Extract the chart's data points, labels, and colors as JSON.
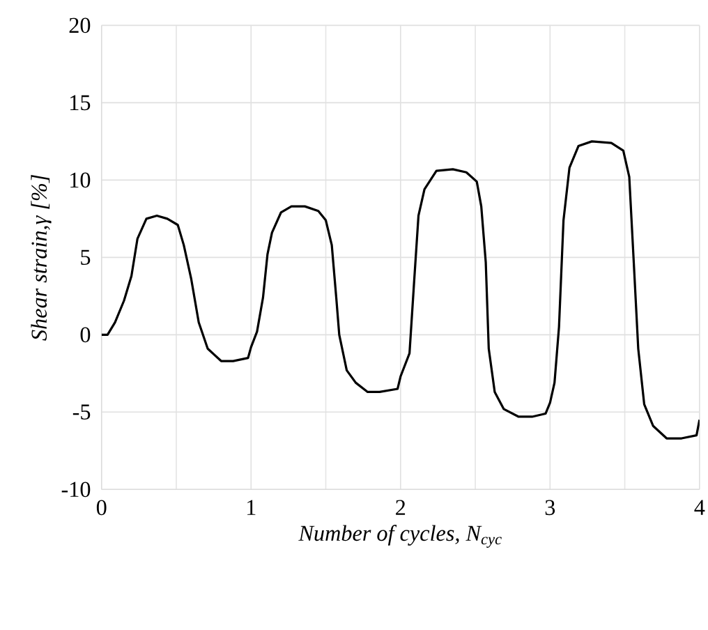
{
  "chart_data": {
    "type": "line",
    "xlabel": "*Number of cycles, N$_{cyc}$*",
    "ylabel": "*Shear strain,γ [%]*",
    "xlim": [
      0,
      4
    ],
    "ylim": [
      -10,
      20
    ],
    "xticks": [
      0,
      1,
      2,
      3,
      4
    ],
    "yticks": [
      -10,
      -5,
      0,
      5,
      10,
      15,
      20
    ],
    "grid": true,
    "marker": "none",
    "line_style": "solid",
    "series": [
      {
        "color": "#000000",
        "x": [
          0,
          0.04,
          0.09,
          0.15,
          0.2,
          0.24,
          0.3,
          0.37,
          0.44,
          0.51,
          0.55,
          0.6,
          0.65,
          0.71,
          0.8,
          0.88,
          0.98,
          1.0,
          1.04,
          1.08,
          1.11,
          1.14,
          1.2,
          1.27,
          1.36,
          1.45,
          1.5,
          1.54,
          1.57,
          1.59,
          1.64,
          1.7,
          1.78,
          1.86,
          1.98,
          2.0,
          2.06,
          2.09,
          2.12,
          2.16,
          2.24,
          2.35,
          2.44,
          2.51,
          2.54,
          2.57,
          2.59,
          2.63,
          2.69,
          2.79,
          2.88,
          2.97,
          3.0,
          3.03,
          3.06,
          3.09,
          3.13,
          3.19,
          3.28,
          3.41,
          3.49,
          3.53,
          3.56,
          3.59,
          3.63,
          3.69,
          3.78,
          3.88,
          3.98,
          4.0
        ],
        "values": [
          0,
          0,
          0.8,
          2.2,
          3.8,
          6.2,
          7.5,
          7.7,
          7.5,
          7.1,
          5.8,
          3.6,
          0.8,
          -0.9,
          -1.7,
          -1.7,
          -1.5,
          -0.8,
          0.2,
          2.4,
          5.2,
          6.6,
          7.9,
          8.3,
          8.3,
          8.0,
          7.4,
          5.8,
          2.4,
          0,
          -2.3,
          -3.1,
          -3.7,
          -3.7,
          -3.5,
          -2.7,
          -1.2,
          3.3,
          7.7,
          9.4,
          10.6,
          10.7,
          10.5,
          9.9,
          8.3,
          4.7,
          -0.9,
          -3.7,
          -4.8,
          -5.3,
          -5.3,
          -5.1,
          -4.4,
          -3.1,
          0.5,
          7.4,
          10.8,
          12.2,
          12.5,
          12.4,
          11.9,
          10.2,
          4.7,
          -0.9,
          -4.5,
          -5.9,
          -6.7,
          -6.7,
          -6.5,
          -5.5
        ]
      }
    ]
  }
}
